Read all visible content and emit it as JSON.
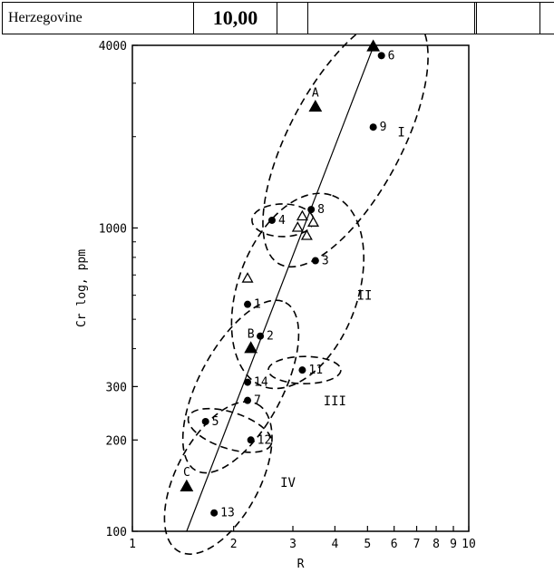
{
  "table_row": {
    "label": "Herzegovine",
    "value": "10,00",
    "cells": [
      "",
      "",
      "",
      ""
    ]
  },
  "chart_data": {
    "type": "scatter",
    "title": "",
    "xlabel": "R",
    "ylabel": "Cr log, ppm",
    "xscale": "log",
    "yscale": "log",
    "xlim": [
      1,
      10
    ],
    "ylim": [
      100,
      4000
    ],
    "xticks": [
      1,
      2,
      3,
      4,
      5,
      6,
      7,
      8,
      9,
      10
    ],
    "yticks": [
      100,
      200,
      300,
      1000,
      4000
    ],
    "grid": false,
    "points": [
      {
        "label": "1",
        "x": 2.2,
        "y": 560,
        "marker": "circle"
      },
      {
        "label": "2",
        "x": 2.4,
        "y": 440,
        "marker": "circle"
      },
      {
        "label": "3",
        "x": 3.5,
        "y": 780,
        "marker": "circle"
      },
      {
        "label": "4",
        "x": 2.6,
        "y": 1060,
        "marker": "circle"
      },
      {
        "label": "5",
        "x": 1.65,
        "y": 230,
        "marker": "circle"
      },
      {
        "label": "6",
        "x": 5.5,
        "y": 3700,
        "marker": "circle"
      },
      {
        "label": "7",
        "x": 2.2,
        "y": 270,
        "marker": "circle"
      },
      {
        "label": "8",
        "x": 3.4,
        "y": 1150,
        "marker": "circle"
      },
      {
        "label": "9",
        "x": 5.2,
        "y": 2150,
        "marker": "circle"
      },
      {
        "label": "11",
        "x": 3.2,
        "y": 340,
        "marker": "circle"
      },
      {
        "label": "12",
        "x": 2.25,
        "y": 200,
        "marker": "circle"
      },
      {
        "label": "13",
        "x": 1.75,
        "y": 115,
        "marker": "circle"
      },
      {
        "label": "14",
        "x": 2.2,
        "y": 310,
        "marker": "circle"
      }
    ],
    "filled_triangles": [
      {
        "label": "A",
        "x": 3.5,
        "y": 2500
      },
      {
        "label": "B",
        "x": 2.25,
        "y": 400
      },
      {
        "label": "C",
        "x": 1.45,
        "y": 140
      },
      {
        "label": "",
        "x": 5.2,
        "y": 3950
      }
    ],
    "open_triangles": [
      {
        "x": 2.2,
        "y": 680
      },
      {
        "x": 3.2,
        "y": 1090
      },
      {
        "x": 3.1,
        "y": 1000
      },
      {
        "x": 3.45,
        "y": 1040
      },
      {
        "x": 3.3,
        "y": 940
      }
    ],
    "trend_line": {
      "x": [
        1.45,
        5.2
      ],
      "y": [
        100,
        3950
      ]
    },
    "groups": [
      {
        "label": "I",
        "label_x": 6.3,
        "label_y": 2000
      },
      {
        "label": "II",
        "label_x": 4.9,
        "label_y": 580
      },
      {
        "label": "III",
        "label_x": 4.0,
        "label_y": 260
      },
      {
        "label": "IV",
        "label_x": 2.9,
        "label_y": 140
      }
    ]
  }
}
